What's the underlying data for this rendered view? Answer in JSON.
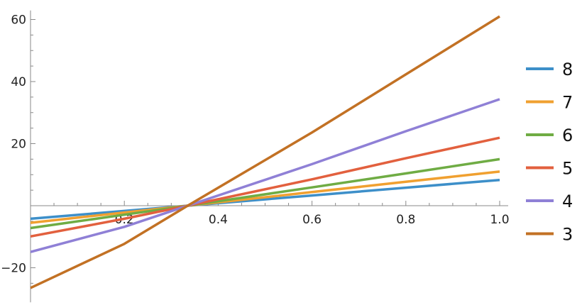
{
  "chart_data": {
    "type": "line",
    "title": "",
    "xlabel": "",
    "ylabel": "",
    "xlim": [
      0.0,
      1.0
    ],
    "ylim": [
      -30,
      62
    ],
    "grid": false,
    "legend_position": "right",
    "x_ticks": [
      {
        "value": 0.2,
        "label": "0.2"
      },
      {
        "value": 0.4,
        "label": "0.4"
      },
      {
        "value": 0.6,
        "label": "0.6"
      },
      {
        "value": 0.8,
        "label": "0.8"
      },
      {
        "value": 1.0,
        "label": "1.0"
      }
    ],
    "y_ticks": [
      {
        "value": -20,
        "label": "−20"
      },
      {
        "value": 20,
        "label": "20"
      },
      {
        "value": 40,
        "label": "40"
      },
      {
        "value": 60,
        "label": "60"
      }
    ],
    "series": [
      {
        "name": "8",
        "color": "#3d8fc9",
        "x": [
          0.0,
          0.2,
          0.335,
          0.6,
          0.8,
          1.0
        ],
        "y": [
          -4.2,
          -1.7,
          0.0,
          3.3,
          5.8,
          8.3
        ]
      },
      {
        "name": "7",
        "color": "#f0a030",
        "x": [
          0.0,
          0.2,
          0.335,
          0.6,
          0.8,
          1.0
        ],
        "y": [
          -5.5,
          -2.2,
          0.0,
          4.4,
          7.7,
          11.0
        ]
      },
      {
        "name": "6",
        "color": "#6fac44",
        "x": [
          0.0,
          0.2,
          0.335,
          0.6,
          0.8,
          1.0
        ],
        "y": [
          -7.2,
          -2.9,
          0.0,
          5.9,
          10.4,
          15.0
        ]
      },
      {
        "name": "5",
        "color": "#e2603e",
        "x": [
          0.0,
          0.2,
          0.335,
          0.6,
          0.8,
          1.0
        ],
        "y": [
          -9.9,
          -4.2,
          0.0,
          8.5,
          15.3,
          21.9
        ]
      },
      {
        "name": "4",
        "color": "#8f80d6",
        "x": [
          0.0,
          0.2,
          0.335,
          0.6,
          0.8,
          1.0
        ],
        "y": [
          -14.9,
          -6.8,
          0.0,
          13.4,
          24.0,
          34.3
        ]
      },
      {
        "name": "3",
        "color": "#c27124",
        "x": [
          0.0,
          0.2,
          0.335,
          0.6,
          0.8,
          1.0
        ],
        "y": [
          -26.5,
          -12.3,
          0.0,
          23.6,
          42.3,
          61.0
        ]
      }
    ]
  }
}
